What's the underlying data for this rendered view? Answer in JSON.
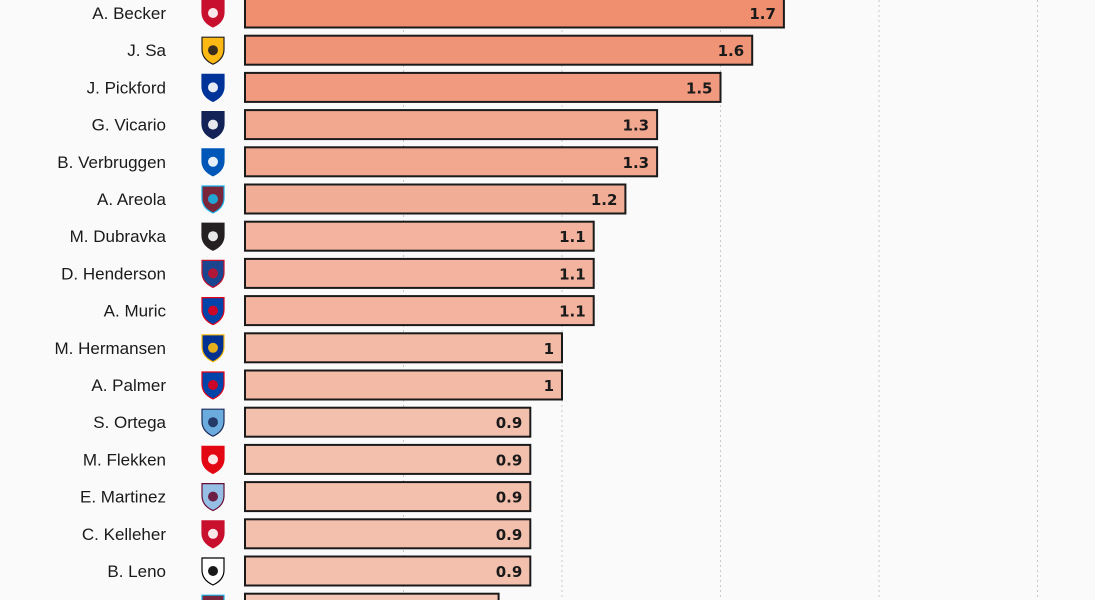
{
  "chart_data": {
    "type": "bar",
    "orientation": "horizontal",
    "title": "",
    "xlabel": "",
    "ylabel": "",
    "xlim": [
      0,
      2.6
    ],
    "grid": true,
    "colors": {
      "high": "#f08e70",
      "low": "#f4c6b6",
      "stroke": "#1a1a1a"
    },
    "bars": [
      {
        "player": "A. Becker",
        "club": "Liverpool",
        "value": 1.7,
        "label": "1.7"
      },
      {
        "player": "J. Sa",
        "club": "Wolverhampton",
        "value": 1.6,
        "label": "1.6"
      },
      {
        "player": "J. Pickford",
        "club": "Everton",
        "value": 1.5,
        "label": "1.5"
      },
      {
        "player": "G. Vicario",
        "club": "Tottenham",
        "value": 1.3,
        "label": "1.3"
      },
      {
        "player": "B. Verbruggen",
        "club": "Brighton",
        "value": 1.3,
        "label": "1.3"
      },
      {
        "player": "A. Areola",
        "club": "West Ham",
        "value": 1.2,
        "label": "1.2"
      },
      {
        "player": "M. Dubravka",
        "club": "Newcastle",
        "value": 1.1,
        "label": "1.1"
      },
      {
        "player": "D. Henderson",
        "club": "Crystal Palace",
        "value": 1.1,
        "label": "1.1"
      },
      {
        "player": "A. Muric",
        "club": "Ipswich",
        "value": 1.1,
        "label": "1.1"
      },
      {
        "player": "M. Hermansen",
        "club": "Leicester",
        "value": 1.0,
        "label": "1"
      },
      {
        "player": "A. Palmer",
        "club": "Ipswich",
        "value": 1.0,
        "label": "1"
      },
      {
        "player": "S. Ortega",
        "club": "Manchester City",
        "value": 0.9,
        "label": "0.9"
      },
      {
        "player": "M. Flekken",
        "club": "Brentford",
        "value": 0.9,
        "label": "0.9"
      },
      {
        "player": "E. Martinez",
        "club": "Aston Villa",
        "value": 0.9,
        "label": "0.9"
      },
      {
        "player": "C. Kelleher",
        "club": "Liverpool",
        "value": 0.9,
        "label": "0.9"
      },
      {
        "player": "B. Leno",
        "club": "Fulham",
        "value": 0.9,
        "label": "0.9"
      },
      {
        "player": "",
        "club": "West Ham",
        "value": 0.8,
        "label": ""
      }
    ]
  },
  "badges": {
    "Liverpool": {
      "icon": "liverbird-crest-icon",
      "fill": "#c8102e",
      "accent": "#ffffff"
    },
    "Wolverhampton": {
      "icon": "wolf-crest-icon",
      "fill": "#fdb913",
      "accent": "#231f20"
    },
    "Everton": {
      "icon": "everton-crest-icon",
      "fill": "#003399",
      "accent": "#ffffff"
    },
    "Tottenham": {
      "icon": "cockerel-crest-icon",
      "fill": "#132257",
      "accent": "#ffffff"
    },
    "Brighton": {
      "icon": "seagull-crest-icon",
      "fill": "#0057b8",
      "accent": "#ffffff"
    },
    "West Ham": {
      "icon": "hammers-crest-icon",
      "fill": "#7a263a",
      "accent": "#1bb1e7"
    },
    "Newcastle": {
      "icon": "magpies-crest-icon",
      "fill": "#241f20",
      "accent": "#ffffff"
    },
    "Crystal Palace": {
      "icon": "eagle-crest-icon",
      "fill": "#1b458f",
      "accent": "#c4122e"
    },
    "Ipswich": {
      "icon": "tractor-boys-crest-icon",
      "fill": "#0044aa",
      "accent": "#e2001a"
    },
    "Leicester": {
      "icon": "fox-crest-icon",
      "fill": "#003090",
      "accent": "#fdbe11"
    },
    "Manchester City": {
      "icon": "city-crest-icon",
      "fill": "#6cabdd",
      "accent": "#1c2c5b"
    },
    "Brentford": {
      "icon": "bee-crest-icon",
      "fill": "#e30613",
      "accent": "#ffffff"
    },
    "Aston Villa": {
      "icon": "lion-crest-icon",
      "fill": "#95bfe5",
      "accent": "#670e36"
    },
    "Fulham": {
      "icon": "fulham-crest-icon",
      "fill": "#ffffff",
      "accent": "#000000"
    }
  }
}
